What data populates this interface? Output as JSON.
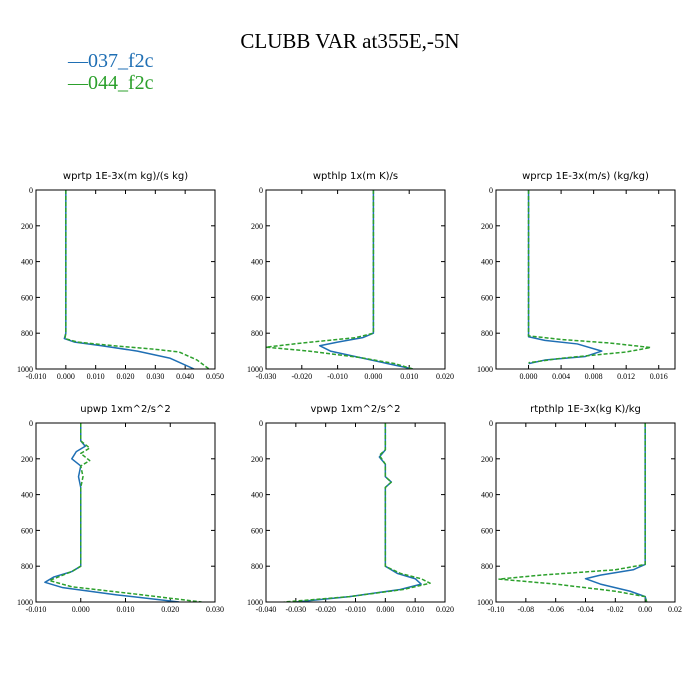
{
  "title": "CLUBB VAR at355E,-5N",
  "legend": [
    {
      "name": "037_f2c",
      "color": "#1f6fb4",
      "marker": "—"
    },
    {
      "name": "044_f2c",
      "color": "#2ca02c",
      "marker": "—"
    }
  ],
  "colors": {
    "series_037": "#1f6fb4",
    "series_044": "#2ca02c",
    "axis": "#000000"
  },
  "chart_data": [
    {
      "type": "line",
      "title": "wprtp  1E-3x(m kg)/(s kg)",
      "xlim": [
        -0.01,
        0.05
      ],
      "ylim": [
        1000,
        0
      ],
      "xticks": [
        "-0.010",
        "0.000",
        "0.010",
        "0.020",
        "0.030",
        "0.040",
        "0.050"
      ],
      "yticks": [
        "0",
        "200",
        "400",
        "600",
        "800",
        "1000"
      ],
      "series": [
        {
          "name": "037_f2c",
          "style": "solid",
          "x": [
            0.0,
            0.0,
            0.0,
            -0.0005,
            0.003,
            0.012,
            0.024,
            0.035,
            0.043
          ],
          "y": [
            0,
            300,
            800,
            830,
            850,
            870,
            900,
            940,
            1000
          ]
        },
        {
          "name": "044_f2c",
          "style": "dashed",
          "x": [
            0.0,
            0.0,
            0.0,
            -0.0003,
            0.004,
            0.016,
            0.03,
            0.038,
            0.04,
            0.044,
            0.048
          ],
          "y": [
            0,
            300,
            800,
            830,
            850,
            870,
            890,
            905,
            920,
            950,
            1000
          ]
        }
      ]
    },
    {
      "type": "line",
      "title": "wpthlp  1x(m K)/s",
      "xlim": [
        -0.03,
        0.02
      ],
      "ylim": [
        1000,
        0
      ],
      "xticks": [
        "-0.030",
        "-0.020",
        "-0.010",
        "0.000",
        "0.010",
        "0.020"
      ],
      "yticks": [
        "0",
        "200",
        "400",
        "600",
        "800",
        "1000"
      ],
      "series": [
        {
          "name": "037_f2c",
          "style": "solid",
          "x": [
            0.0,
            0.0,
            0.0,
            -0.003,
            -0.01,
            -0.015,
            -0.012,
            -0.004,
            0.004,
            0.011
          ],
          "y": [
            0,
            400,
            800,
            825,
            850,
            870,
            900,
            935,
            970,
            1000
          ]
        },
        {
          "name": "044_f2c",
          "style": "dashed",
          "x": [
            0.0,
            0.0,
            0.0,
            -0.005,
            -0.02,
            -0.03,
            -0.018,
            -0.004,
            0.006,
            0.011
          ],
          "y": [
            0,
            400,
            800,
            825,
            855,
            878,
            900,
            935,
            970,
            1000
          ]
        }
      ]
    },
    {
      "type": "line",
      "title": "wprcp  1E-3x(m/s) (kg/kg)",
      "xlim": [
        -0.004,
        0.018
      ],
      "ylim": [
        1000,
        0
      ],
      "xticks": [
        "0.000",
        "0.004",
        "0.008",
        "0.012",
        "0.016"
      ],
      "yticks": [
        "0",
        "200",
        "400",
        "600",
        "800",
        "1000"
      ],
      "series": [
        {
          "name": "037_f2c",
          "style": "solid",
          "x": [
            0.0,
            0.0,
            0.0,
            0.002,
            0.006,
            0.009,
            0.007,
            0.002,
            0.0
          ],
          "y": [
            0,
            400,
            820,
            840,
            860,
            900,
            930,
            950,
            970
          ]
        },
        {
          "name": "044_f2c",
          "style": "dashed",
          "x": [
            0.0,
            0.0,
            0.0,
            0.004,
            0.01,
            0.015,
            0.012,
            0.004,
            0.0
          ],
          "y": [
            0,
            400,
            815,
            835,
            855,
            880,
            905,
            940,
            965
          ]
        }
      ]
    },
    {
      "type": "line",
      "title": "upwp  1xm^2/s^2",
      "xlim": [
        -0.01,
        0.03
      ],
      "ylim": [
        1000,
        0
      ],
      "xticks": [
        "-0.010",
        "0.000",
        "0.010",
        "0.020",
        "0.030"
      ],
      "yticks": [
        "0",
        "200",
        "400",
        "600",
        "800",
        "1000"
      ],
      "series": [
        {
          "name": "037_f2c",
          "style": "solid",
          "x": [
            0.0,
            0.0,
            0.001,
            -0.001,
            -0.002,
            0.0,
            -0.0005,
            0.0,
            0.0,
            -0.002,
            -0.006,
            -0.008,
            -0.004,
            0.008,
            0.022
          ],
          "y": [
            0,
            100,
            130,
            160,
            200,
            240,
            300,
            360,
            800,
            830,
            860,
            890,
            920,
            960,
            1000
          ]
        },
        {
          "name": "044_f2c",
          "style": "dashed",
          "x": [
            0.0,
            0.0,
            0.002,
            0.0,
            0.002,
            0.0,
            0.0005,
            0.0,
            0.0,
            -0.002,
            -0.005,
            -0.007,
            -0.002,
            0.012,
            0.027
          ],
          "y": [
            0,
            100,
            140,
            170,
            210,
            240,
            300,
            360,
            800,
            830,
            860,
            880,
            915,
            955,
            1000
          ]
        }
      ]
    },
    {
      "type": "line",
      "title": "vpwp  1xm^2/s^2",
      "xlim": [
        -0.04,
        0.02
      ],
      "ylim": [
        1000,
        0
      ],
      "xticks": [
        "-0.040",
        "-0.030",
        "-0.020",
        "-0.010",
        "0.000",
        "0.010",
        "0.020"
      ],
      "yticks": [
        "0",
        "200",
        "400",
        "600",
        "800",
        "1000"
      ],
      "series": [
        {
          "name": "037_f2c",
          "style": "solid",
          "x": [
            0.0,
            0.0,
            -0.002,
            0.0,
            0.0,
            0.002,
            0.0,
            0.0,
            0.004,
            0.01,
            0.012,
            0.005,
            -0.012,
            -0.03
          ],
          "y": [
            0,
            150,
            190,
            230,
            300,
            330,
            360,
            800,
            840,
            870,
            900,
            930,
            970,
            1000
          ]
        },
        {
          "name": "044_f2c",
          "style": "dashed",
          "x": [
            0.0,
            0.0,
            -0.002,
            0.0,
            0.0,
            0.002,
            0.0,
            0.0,
            0.005,
            0.012,
            0.015,
            0.006,
            -0.012,
            -0.034
          ],
          "y": [
            0,
            150,
            180,
            230,
            300,
            330,
            360,
            800,
            840,
            870,
            895,
            930,
            970,
            1000
          ]
        }
      ]
    },
    {
      "type": "line",
      "title": "rtpthlp  1E-3x(kg K)/kg",
      "xlim": [
        -0.1,
        0.02
      ],
      "ylim": [
        1000,
        0
      ],
      "xticks": [
        "-0.10",
        "-0.08",
        "-0.06",
        "-0.04",
        "-0.02",
        "0.00",
        "0.02"
      ],
      "yticks": [
        "0",
        "200",
        "400",
        "600",
        "800",
        "1000"
      ],
      "series": [
        {
          "name": "037_f2c",
          "style": "solid",
          "x": [
            0.0,
            0.0,
            0.0,
            -0.008,
            -0.03,
            -0.04,
            -0.03,
            -0.01,
            0.0,
            0.001
          ],
          "y": [
            0,
            400,
            790,
            820,
            850,
            870,
            900,
            940,
            970,
            1000
          ]
        },
        {
          "name": "044_f2c",
          "style": "dashed",
          "x": [
            0.0,
            0.0,
            0.0,
            -0.02,
            -0.07,
            -0.098,
            -0.06,
            -0.02,
            0.0,
            0.001
          ],
          "y": [
            0,
            400,
            790,
            820,
            850,
            872,
            900,
            940,
            970,
            1000
          ]
        }
      ]
    }
  ]
}
